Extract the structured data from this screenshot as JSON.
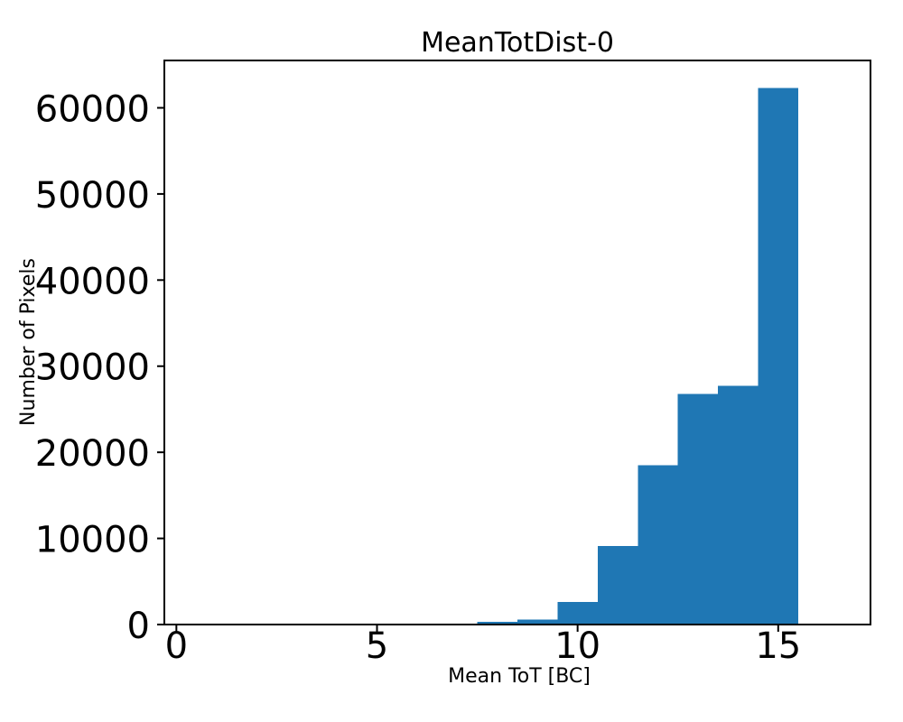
{
  "chart_data": {
    "type": "bar",
    "subtype": "histogram",
    "title": "MeanTotDist-0",
    "xlabel": "Mean ToT [BC]",
    "ylabel": "Number of Pixels",
    "bin_edges": [
      7.5,
      8.5,
      9.5,
      10.5,
      11.5,
      12.5,
      13.5,
      14.5,
      15.5
    ],
    "counts": [
      300,
      600,
      2600,
      9100,
      18500,
      26800,
      27700,
      62300
    ],
    "bar_color": "#1f77b4",
    "axis_color": "#000000",
    "background_color": "#ffffff",
    "xlim": [
      -0.3,
      17.3
    ],
    "ylim": [
      0,
      65500
    ],
    "xticks": {
      "values": [
        0,
        5,
        10,
        15
      ],
      "labels": [
        "0",
        "5",
        "10",
        "15"
      ]
    },
    "yticks": {
      "values": [
        0,
        10000,
        20000,
        30000,
        40000,
        50000,
        60000
      ],
      "labels": [
        "0",
        "10000",
        "20000",
        "30000",
        "40000",
        "50000",
        "60000"
      ]
    },
    "grid": false,
    "legend": "none"
  }
}
